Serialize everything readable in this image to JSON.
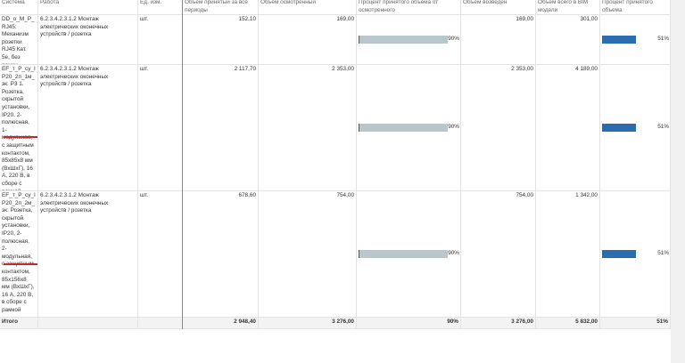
{
  "table": {
    "headers": [
      "Система",
      "Работа",
      "Ед. изм.",
      "Объем принятый за все периоды",
      "Объем осмотренный",
      "Процент принятого объема от осмотренного",
      "Объем возведен",
      "Объем всего в BIM модели",
      "Процент принятого объема"
    ],
    "rows": [
      {
        "system": "DD_o_M_P_RJ45: Механизм розетки RJ45 Кат. 5е, без рамки",
        "work": "6.2.3.4.2.3.1.2 Монтаж электрических оконечных устройств / розетка",
        "unit": "шт.",
        "accepted": "152,10",
        "inspected": "169,00",
        "pct_inspected": {
          "value": 90,
          "label": "90%"
        },
        "built": "169,00",
        "bim": "301,00",
        "pct": {
          "value": 51,
          "label": "51%"
        }
      },
      {
        "system": "EF_т_P_су_IP20_2п_1м_эк: Р3 1. Розетка, скрытой установки, IP20, 2-полюсная, 1-модульная, с защитным контактом, 85х85х8 мм (ВхШхГ), 16 А, 220 В, в сборе с рамкой",
        "work": "6.2.3.4.2.3.1.2 Монтаж электрических оконечных устройств / розетка",
        "unit": "шт.",
        "accepted": "2 117,70",
        "inspected": "2 353,00",
        "pct_inspected": {
          "value": 90,
          "label": "90%"
        },
        "built": "2 353,00",
        "bim": "4 189,00",
        "pct": {
          "value": 51,
          "label": "51%"
        }
      },
      {
        "system": "EF_т_P_су_IP20_2п_2м_эк: Розетка, скрытой установки, IP20, 2-полюсная, 2-модульная, с защитным контактом, 85х156х8 мм (ВхШхГ), 16 А, 220 В, в сборе с рамкой",
        "work": "6.2.3.4.2.3.1.2 Монтаж электрических оконечных устройств / розетка",
        "unit": "шт.",
        "accepted": "678,60",
        "inspected": "754,00",
        "pct_inspected": {
          "value": 90,
          "label": "90%"
        },
        "built": "754,00",
        "bim": "1 342,00",
        "pct": {
          "value": 51,
          "label": "51%"
        }
      }
    ],
    "total": {
      "label": "Итого",
      "accepted": "2 948,40",
      "inspected": "3 276,00",
      "pct_inspected": "90%",
      "built": "3 276,00",
      "bim": "5 832,00",
      "pct": "51%"
    }
  }
}
